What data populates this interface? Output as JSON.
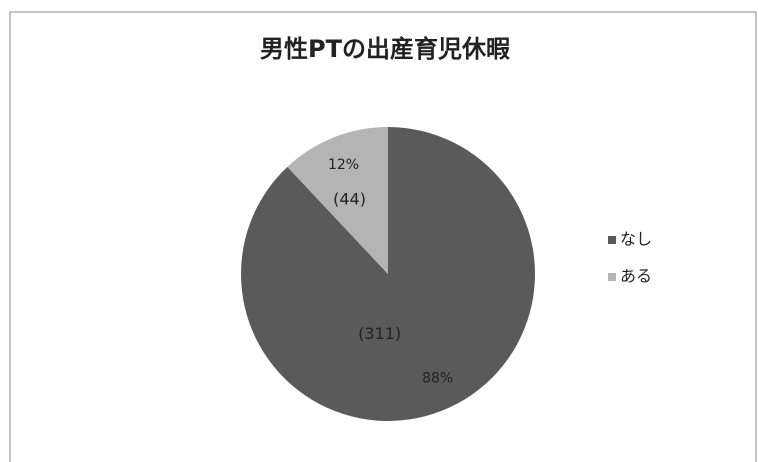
{
  "chart_data": {
    "type": "pie",
    "title": "男性PTの出産育児休暇",
    "categories": [
      "なし",
      "ある"
    ],
    "values": [
      88,
      12
    ],
    "value_labels": [
      "88%",
      "12%"
    ],
    "counts": [
      311,
      44
    ],
    "count_labels": [
      "(311)",
      "(44)"
    ],
    "colors": [
      "#5a5a5a",
      "#b4b4b4"
    ],
    "legend": "right"
  }
}
